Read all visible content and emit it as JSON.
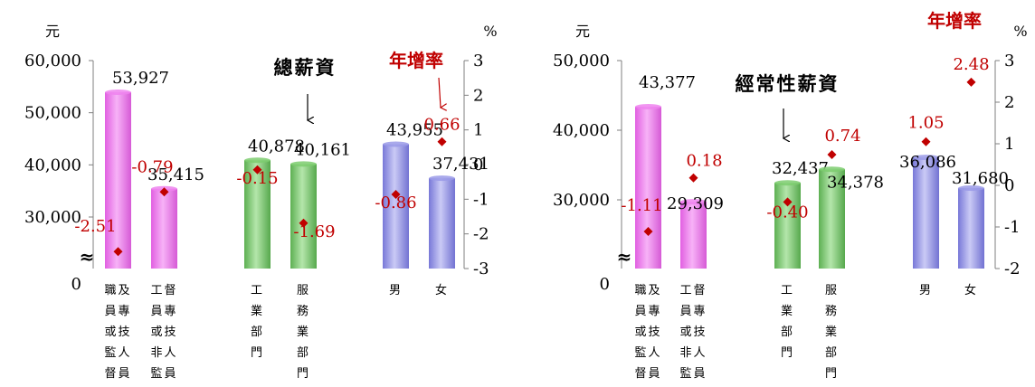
{
  "chart_data": [
    {
      "type": "bar",
      "title": "總薪資",
      "y_unit": "元",
      "y2_unit": "%",
      "y2_series_name": "年增率",
      "ylim": [
        0,
        60000
      ],
      "y_ticks": [
        "0",
        "30,000",
        "40,000",
        "50,000",
        "60,000"
      ],
      "y_tick_values": [
        0,
        30000,
        40000,
        50000,
        60000
      ],
      "axis_break": "≈",
      "y2lim": [
        -3,
        3
      ],
      "y2_ticks": [
        "-3",
        "-2",
        "-1",
        "0",
        "1",
        "2",
        "3"
      ],
      "categories": [
        "職及員專或技監人督員",
        "工督員專或技非人監員",
        "工業部門",
        "服務業部門",
        "男",
        "女"
      ],
      "category_lines": [
        [
          "職及",
          "員專",
          "或技",
          "監人",
          "督員"
        ],
        [
          "工督",
          "員專",
          "或技",
          "非人",
          "監員"
        ],
        [
          "工",
          "業",
          "部",
          "門"
        ],
        [
          "服",
          "務",
          "業",
          "部",
          "門"
        ],
        [
          "男"
        ],
        [
          "女"
        ]
      ],
      "values": [
        53927,
        35415,
        40878,
        40161,
        43955,
        37431
      ],
      "value_labels": [
        "53,927",
        "35,415",
        "40,878",
        "40,161",
        "43,955",
        "37,431"
      ],
      "growth": [
        -2.51,
        -0.79,
        -0.15,
        -1.69,
        -0.86,
        0.66
      ],
      "growth_labels": [
        "-2.51",
        "-0.79",
        "-0.15",
        "-1.69",
        "-0.86",
        "0.66"
      ],
      "bar_colors": [
        "#ee82ee",
        "#ee82ee",
        "#7ccc6e",
        "#7ccc6e",
        "#9a9ae8",
        "#9a9ae8"
      ],
      "marker_color": "#c00000",
      "label_color": "#c00000",
      "arrow_color": "#c00000"
    },
    {
      "type": "bar",
      "title": "經常性薪資",
      "y_unit": "元",
      "y2_unit": "%",
      "y2_series_name": "年增率",
      "ylim": [
        0,
        50000
      ],
      "y_ticks": [
        "0",
        "30,000",
        "40,000",
        "50,000"
      ],
      "y_tick_values": [
        0,
        30000,
        40000,
        50000
      ],
      "axis_break": "≈",
      "y2lim": [
        -2,
        3
      ],
      "y2_ticks": [
        "-2",
        "-1",
        "0",
        "1",
        "2",
        "3"
      ],
      "categories": [
        "職及員專或技監人督員",
        "工督員專或技非人監員",
        "工業部門",
        "服務業部門",
        "男",
        "女"
      ],
      "category_lines": [
        [
          "職及",
          "員專",
          "或技",
          "監人",
          "督員"
        ],
        [
          "工督",
          "員專",
          "或技",
          "非人",
          "監員"
        ],
        [
          "工",
          "業",
          "部",
          "門"
        ],
        [
          "服",
          "務",
          "業",
          "部",
          "門"
        ],
        [
          "男"
        ],
        [
          "女"
        ]
      ],
      "values": [
        43377,
        29309,
        32437,
        34378,
        36086,
        31680
      ],
      "value_labels": [
        "43,377",
        "29,309",
        "32,437",
        "34,378",
        "36,086",
        "31,680"
      ],
      "growth": [
        -1.11,
        0.18,
        -0.4,
        0.74,
        1.05,
        2.48
      ],
      "growth_labels": [
        "-1.11",
        "0.18",
        "-0.40",
        "0.74",
        "1.05",
        "2.48"
      ],
      "bar_colors": [
        "#ee82ee",
        "#ee82ee",
        "#7ccc6e",
        "#7ccc6e",
        "#9a9ae8",
        "#9a9ae8"
      ],
      "marker_color": "#c00000",
      "label_color": "#c00000"
    }
  ]
}
